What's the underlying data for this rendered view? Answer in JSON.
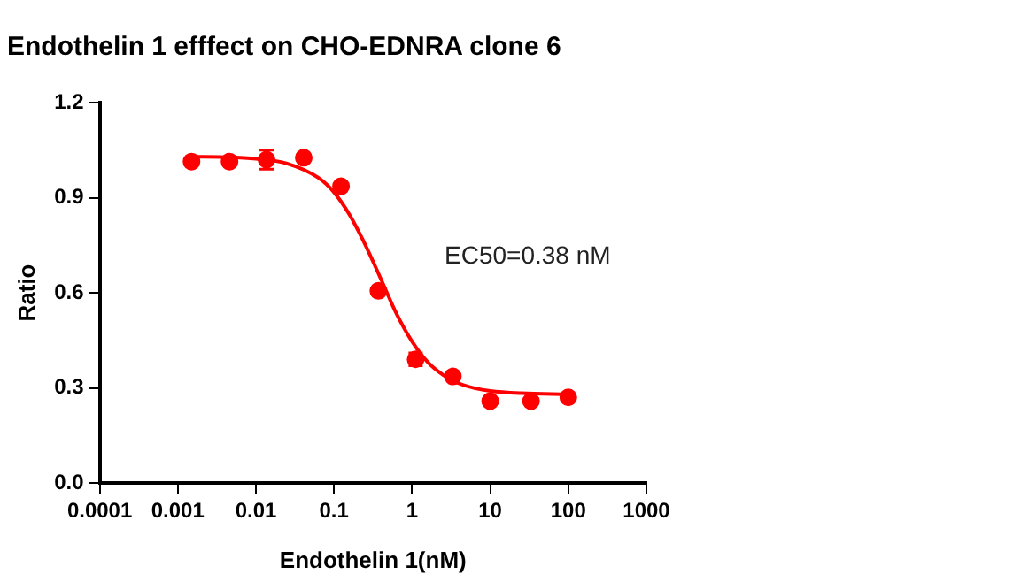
{
  "chart_data": {
    "type": "scatter",
    "title": "Endothelin 1 efffect on CHO-EDNRA clone 6",
    "xlabel": "Endothelin 1(nM)",
    "ylabel": "Ratio",
    "annotations": [
      "EC50=0.38 nM"
    ],
    "log": "x",
    "grid": false,
    "legend": false,
    "marker": "circle",
    "xlim": [
      0.0001,
      1000
    ],
    "xticks": [
      0.0001,
      0.001,
      0.01,
      0.1,
      1,
      10,
      100,
      1000
    ],
    "ylim": [
      0,
      1.2
    ],
    "yticks": [
      {
        "value": 0,
        "label": "0.0"
      },
      {
        "value": 0.3,
        "label": "0.3"
      },
      {
        "value": 0.6,
        "label": "0.6"
      },
      {
        "value": 0.9,
        "label": "0.9"
      },
      {
        "value": 1.2,
        "label": "1.2"
      }
    ],
    "series": [
      {
        "type": "scatter",
        "color": "#ff0000",
        "x": [
          0.0015,
          0.0046,
          0.0137,
          0.041,
          0.123,
          0.37,
          1.11,
          3.33,
          10,
          33.3,
          100
        ],
        "values": [
          1.014,
          1.014,
          1.02,
          1.026,
          0.936,
          0.606,
          0.39,
          0.336,
          0.258,
          0.258,
          0.27
        ],
        "errors": [
          null,
          null,
          0.03,
          null,
          null,
          null,
          0.02,
          null,
          null,
          null,
          null
        ]
      },
      {
        "type": "line",
        "color": "#ff0000",
        "marker": "none",
        "x": [
          0.0016,
          0.004,
          0.01,
          0.025,
          0.063,
          0.1,
          0.158,
          0.251,
          0.398,
          0.631,
          1,
          1.585,
          2.512,
          3.981,
          6.31,
          10,
          25.12,
          100
        ],
        "values": [
          1.029,
          1.028,
          1.023,
          1.008,
          0.963,
          0.917,
          0.846,
          0.752,
          0.644,
          0.534,
          0.446,
          0.381,
          0.34,
          0.314,
          0.299,
          0.29,
          0.283,
          0.28
        ]
      }
    ]
  }
}
